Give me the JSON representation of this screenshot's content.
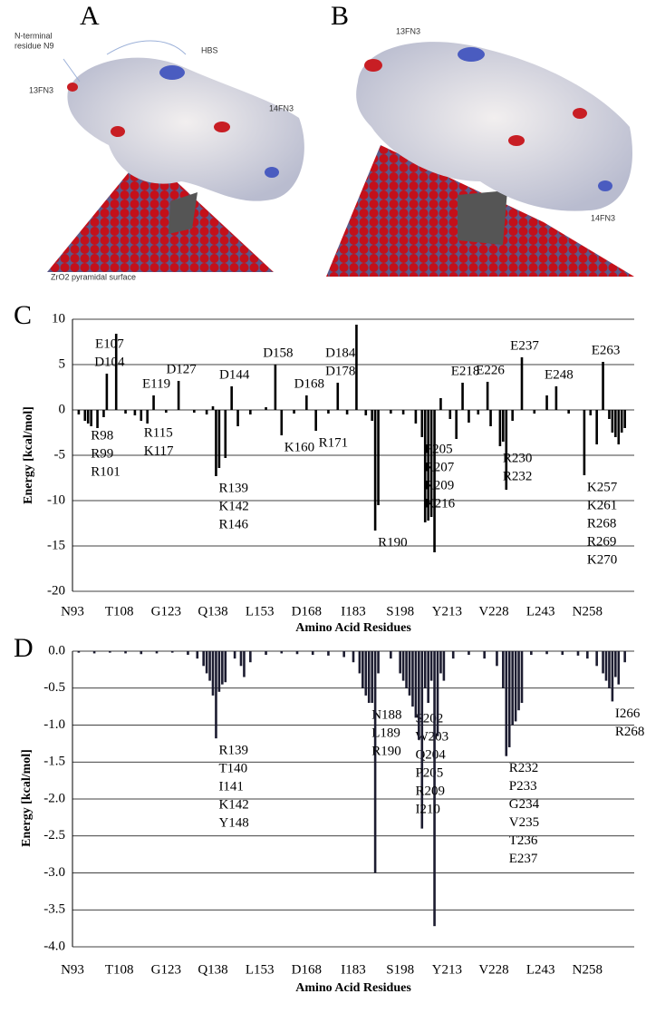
{
  "panels": {
    "A": {
      "letter": "A",
      "n_terminal": [
        "N-terminal",
        "residue  N9"
      ],
      "hbs": "HBS",
      "domain1": "13FN3",
      "domain2": "14FN3",
      "surface": "ZrO2 pyramidal surface"
    },
    "B": {
      "letter": "B",
      "domain1": "13FN3",
      "domain2": "14FN3"
    }
  },
  "chart_data": [
    {
      "type": "bar",
      "label": "C",
      "x_label": "Amino Acid Residues",
      "y_label": "Energy [kcal/mol]",
      "color": "#000000",
      "xlim": [
        93,
        273
      ],
      "ylim": [
        -20,
        10
      ],
      "grid": true,
      "xticks": [
        {
          "value": 93,
          "label": "N93"
        },
        {
          "value": 108,
          "label": "T108"
        },
        {
          "value": 123,
          "label": "G123"
        },
        {
          "value": 138,
          "label": "Q138"
        },
        {
          "value": 153,
          "label": "L153"
        },
        {
          "value": 168,
          "label": "D168"
        },
        {
          "value": 183,
          "label": "I183"
        },
        {
          "value": 198,
          "label": "S198"
        },
        {
          "value": 213,
          "label": "Y213"
        },
        {
          "value": 228,
          "label": "V228"
        },
        {
          "value": 243,
          "label": "L243"
        },
        {
          "value": 258,
          "label": "N258"
        }
      ],
      "yticks": [
        -20,
        -15,
        -10,
        -5,
        0,
        5,
        10
      ],
      "x": [
        95,
        97,
        98,
        99,
        101,
        103,
        104,
        107,
        110,
        113,
        115,
        117,
        119,
        123,
        127,
        132,
        136,
        138,
        139,
        140,
        142,
        144,
        146,
        150,
        155,
        158,
        160,
        164,
        168,
        171,
        175,
        178,
        181,
        184,
        187,
        189,
        190,
        191,
        195,
        199,
        203,
        205,
        206,
        207,
        208,
        209,
        211,
        214,
        216,
        218,
        220,
        223,
        226,
        227,
        230,
        231,
        232,
        234,
        237,
        241,
        245,
        248,
        252,
        257,
        259,
        261,
        263,
        265,
        266,
        267,
        268,
        269,
        270
      ],
      "values": [
        -0.5,
        -1.2,
        -1.5,
        -1.8,
        -2.0,
        -0.8,
        4.0,
        8.4,
        -0.4,
        -0.6,
        -1.2,
        -1.5,
        1.6,
        -0.3,
        3.2,
        -0.3,
        -0.5,
        0.4,
        -7.3,
        -6.4,
        -5.3,
        2.6,
        -1.8,
        -0.5,
        0.3,
        5.0,
        -2.8,
        -0.4,
        1.6,
        -2.3,
        -0.4,
        3.0,
        -0.5,
        9.4,
        -0.6,
        -1.2,
        -13.3,
        -10.5,
        -0.4,
        -0.5,
        -1.5,
        -3.0,
        -12.4,
        -12.2,
        -11.8,
        -15.7,
        1.3,
        -1.0,
        -3.2,
        3.0,
        -1.4,
        -0.5,
        3.1,
        -1.8,
        -4.0,
        -3.5,
        -8.8,
        -1.2,
        5.8,
        -0.4,
        1.6,
        2.6,
        -0.4,
        -7.2,
        -0.6,
        -3.8,
        5.3,
        -1.0,
        -2.5,
        -3.0,
        -3.8,
        -2.5,
        -2.0
      ],
      "labels": [
        null,
        null,
        "R98",
        "R99",
        "R101",
        null,
        "D104",
        "E107",
        null,
        null,
        "R115",
        "K117",
        "E119",
        null,
        "D127",
        null,
        null,
        null,
        "R139",
        null,
        "K142",
        "D144",
        "R146",
        null,
        null,
        "D158",
        "K160",
        null,
        "D168",
        "R171",
        null,
        "D178",
        null,
        "D184",
        null,
        null,
        "R190",
        null,
        null,
        null,
        null,
        "P205",
        null,
        "R207",
        null,
        "R209",
        null,
        null,
        "K216",
        "E218",
        null,
        null,
        "E226",
        null,
        "R230",
        null,
        "R232",
        null,
        "E237",
        null,
        null,
        "E248",
        null,
        "K257",
        null,
        "K261",
        "E263",
        null,
        null,
        null,
        "R268",
        "R269",
        "K270"
      ]
    },
    {
      "type": "bar",
      "label": "D",
      "x_label": "Amino Acid Residues",
      "y_label": "Energy [kcal/mol]",
      "color": "#1c1c30",
      "xlim": [
        93,
        273
      ],
      "ylim": [
        -4,
        0
      ],
      "grid": true,
      "xticks": [
        {
          "value": 93,
          "label": "N93"
        },
        {
          "value": 108,
          "label": "T108"
        },
        {
          "value": 123,
          "label": "G123"
        },
        {
          "value": 138,
          "label": "Q138"
        },
        {
          "value": 153,
          "label": "L153"
        },
        {
          "value": 168,
          "label": "D168"
        },
        {
          "value": 183,
          "label": "I183"
        },
        {
          "value": 198,
          "label": "S198"
        },
        {
          "value": 213,
          "label": "Y213"
        },
        {
          "value": 228,
          "label": "V228"
        },
        {
          "value": 243,
          "label": "L243"
        },
        {
          "value": 258,
          "label": "N258"
        }
      ],
      "yticks": [
        {
          "value": -4,
          "label": "-4.0"
        },
        -3.5,
        {
          "value": -3,
          "label": "-3.0"
        },
        -2.5,
        {
          "value": -2,
          "label": "-2.0"
        },
        -1.5,
        {
          "value": -1,
          "label": "-1.0"
        },
        -0.5,
        {
          "value": 0,
          "label": "0.0"
        }
      ],
      "x": [
        95,
        100,
        105,
        110,
        115,
        120,
        125,
        130,
        133,
        135,
        136,
        137,
        138,
        139,
        140,
        141,
        142,
        145,
        147,
        148,
        150,
        155,
        160,
        165,
        170,
        175,
        180,
        183,
        185,
        186,
        187,
        188,
        189,
        190,
        191,
        195,
        198,
        199,
        200,
        201,
        202,
        203,
        204,
        205,
        206,
        207,
        208,
        209,
        210,
        211,
        212,
        215,
        220,
        225,
        229,
        231,
        232,
        233,
        234,
        235,
        236,
        237,
        240,
        245,
        250,
        255,
        258,
        261,
        263,
        264,
        265,
        266,
        267,
        268,
        270
      ],
      "values": [
        -0.02,
        -0.03,
        -0.02,
        -0.03,
        -0.04,
        -0.03,
        -0.02,
        -0.05,
        -0.1,
        -0.2,
        -0.3,
        -0.4,
        -0.6,
        -1.18,
        -0.55,
        -0.45,
        -0.42,
        -0.1,
        -0.2,
        -0.35,
        -0.15,
        -0.05,
        -0.03,
        -0.04,
        -0.05,
        -0.06,
        -0.08,
        -0.15,
        -0.3,
        -0.5,
        -0.6,
        -0.7,
        -0.7,
        -3.0,
        -0.3,
        -0.1,
        -0.3,
        -0.4,
        -0.5,
        -0.6,
        -0.75,
        -0.9,
        -1.2,
        -2.4,
        -0.5,
        -0.7,
        -0.4,
        -3.72,
        -1.15,
        -0.3,
        -0.4,
        -0.1,
        -0.05,
        -0.1,
        -0.2,
        -0.5,
        -1.42,
        -1.3,
        -1.0,
        -0.95,
        -0.8,
        -0.7,
        -0.05,
        -0.04,
        -0.05,
        -0.06,
        -0.1,
        -0.2,
        -0.3,
        -0.4,
        -0.5,
        -0.68,
        -0.35,
        -0.45,
        -0.15
      ],
      "labels": [
        null,
        null,
        null,
        null,
        null,
        null,
        null,
        null,
        null,
        null,
        null,
        null,
        null,
        "R139",
        "T140",
        "I141",
        "K142",
        null,
        null,
        "Y148",
        null,
        null,
        null,
        null,
        null,
        null,
        null,
        null,
        null,
        null,
        null,
        "N188",
        "L189",
        "R190",
        null,
        null,
        null,
        null,
        null,
        null,
        "S202",
        "W203",
        "Q204",
        "P205",
        null,
        null,
        null,
        "R209",
        "I210",
        null,
        null,
        null,
        null,
        null,
        null,
        null,
        "R232",
        "P233",
        "G234",
        "V235",
        "T236",
        "E237",
        null,
        null,
        null,
        null,
        null,
        null,
        null,
        null,
        null,
        "I266",
        null,
        "R268",
        null
      ]
    }
  ]
}
